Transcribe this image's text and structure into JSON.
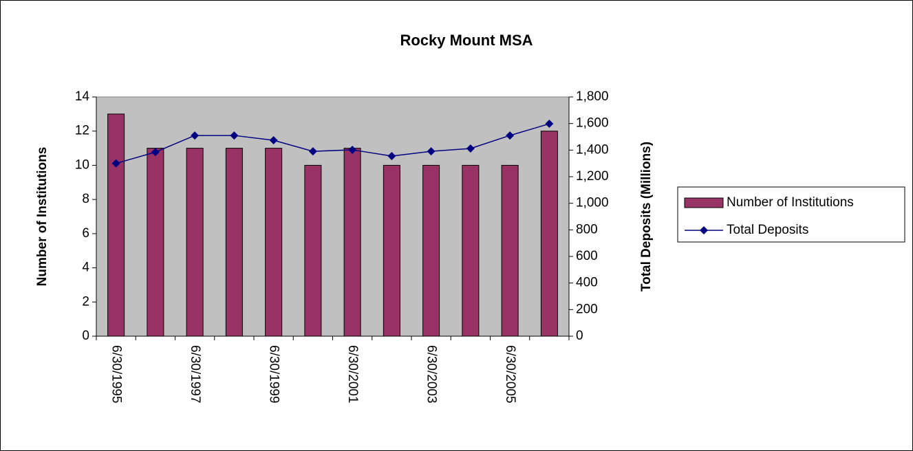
{
  "chart_data": {
    "type": "bar_line",
    "title": "Rocky Mount MSA",
    "categories": [
      "6/30/1995",
      null,
      "6/30/1997",
      null,
      "6/30/1999",
      null,
      "6/30/2001",
      null,
      "6/30/2003",
      null,
      "6/30/2005",
      null
    ],
    "series": [
      {
        "name": "Number of Institutions",
        "type": "bar",
        "color": "#993366",
        "values": [
          13,
          11,
          11,
          11,
          11,
          10,
          11,
          10,
          10,
          10,
          10,
          12
        ]
      },
      {
        "name": "Total Deposits",
        "type": "line",
        "axis": "y2",
        "color": "#000080",
        "values": [
          1300,
          1385,
          1510,
          1510,
          1474,
          1391,
          1402,
          1355,
          1391,
          1412,
          1510,
          1598
        ]
      }
    ],
    "y_label": "Number of Institutions",
    "y2_label": "Total Deposits (Millions)",
    "ylim": [
      0,
      14
    ],
    "yticks": [
      0,
      2,
      4,
      6,
      8,
      10,
      12,
      14
    ],
    "y2lim": [
      0,
      1800
    ],
    "y2ticks": [
      0,
      200,
      400,
      600,
      800,
      {
        "value": 1000,
        "label": "1,000"
      },
      {
        "value": 1200,
        "label": "1,200"
      },
      {
        "value": 1400,
        "label": "1,400"
      },
      {
        "value": 1600,
        "label": "1,600"
      },
      {
        "value": 1800,
        "label": "1,800"
      }
    ],
    "legend": "right",
    "plot_background": "#c0c0c0"
  }
}
